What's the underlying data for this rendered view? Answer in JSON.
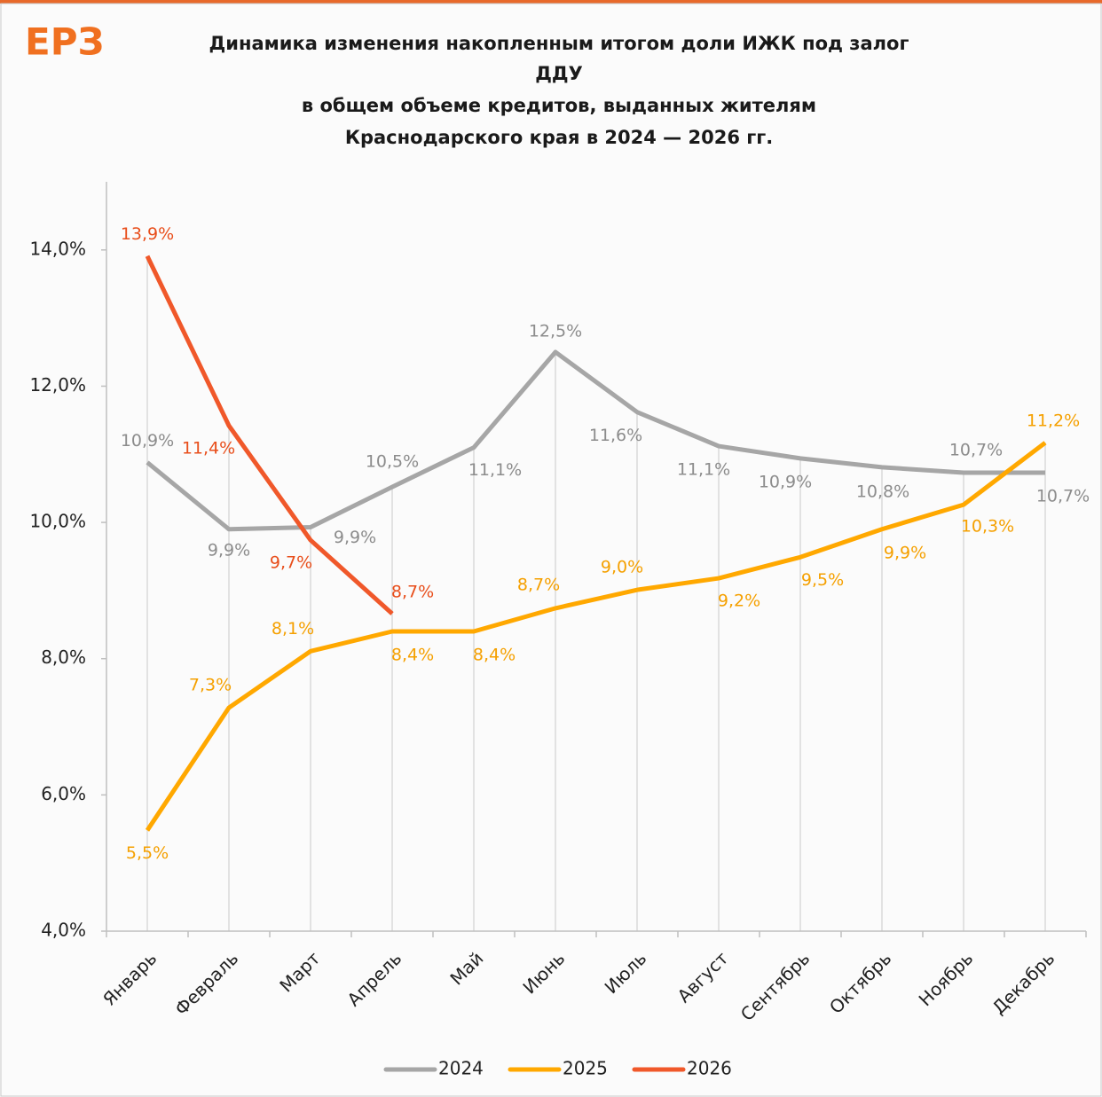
{
  "logo": "ЕРЗ",
  "chart_data": {
    "type": "line",
    "title": [
      "Динамика изменения  накопленным  итогом доли ИЖК под залог",
      "ДДУ",
      "в общем объеме кредитов,  выданных жителям",
      "Краснодарского  края в 2024 — 2026 гг."
    ],
    "categories": [
      "Январь",
      "Февраль",
      "Март",
      "Апрель",
      "Май",
      "Июнь",
      "Июль",
      "Август",
      "Сентябрь",
      "Октябрь",
      "Ноябрь",
      "Декабрь"
    ],
    "ylim": [
      4,
      15
    ],
    "yticks": [
      {
        "value": 4,
        "label": "4,0%"
      },
      {
        "value": 6,
        "label": "6,0%"
      },
      {
        "value": 8,
        "label": "8,0%"
      },
      {
        "value": 10,
        "label": "10,0%"
      },
      {
        "value": 12,
        "label": "12,0%"
      },
      {
        "value": 14,
        "label": "14,0%"
      }
    ],
    "legend": "bottom",
    "series": [
      {
        "name": "2024",
        "color": "#a6a6a6",
        "label_color": "#8c8c8c",
        "values": [
          10.88,
          9.9,
          9.93,
          10.52,
          11.1,
          12.5,
          11.62,
          11.12,
          10.94,
          10.81,
          10.73,
          10.73
        ],
        "value_labels": [
          "10,9%",
          "9,9%",
          "9,9%",
          "10,5%",
          "11,1%",
          "12,5%",
          "11,6%",
          "11,1%",
          "10,9%",
          "10,8%",
          "10,7%",
          "10,7%"
        ]
      },
      {
        "name": "2025",
        "color": "#ffa800",
        "label_color": "#f5a000",
        "values": [
          5.48,
          7.28,
          8.11,
          8.4,
          8.4,
          8.74,
          9.01,
          9.18,
          9.49,
          9.9,
          10.26,
          11.17
        ],
        "value_labels": [
          "5,5%",
          "7,3%",
          "8,1%",
          "8,4%",
          "8,4%",
          "8,7%",
          "9,0%",
          "9,2%",
          "9,5%",
          "9,9%",
          "10,3%",
          "11,2%"
        ]
      },
      {
        "name": "2026",
        "color": "#f0582a",
        "label_color": "#e84e1b",
        "values": [
          13.91,
          11.42,
          9.74,
          8.66,
          null,
          null,
          null,
          null,
          null,
          null,
          null,
          null
        ],
        "value_labels": [
          "13,9%",
          "11,4%",
          "9,7%",
          "8,7%",
          null,
          null,
          null,
          null,
          null,
          null,
          null,
          null
        ]
      }
    ]
  }
}
